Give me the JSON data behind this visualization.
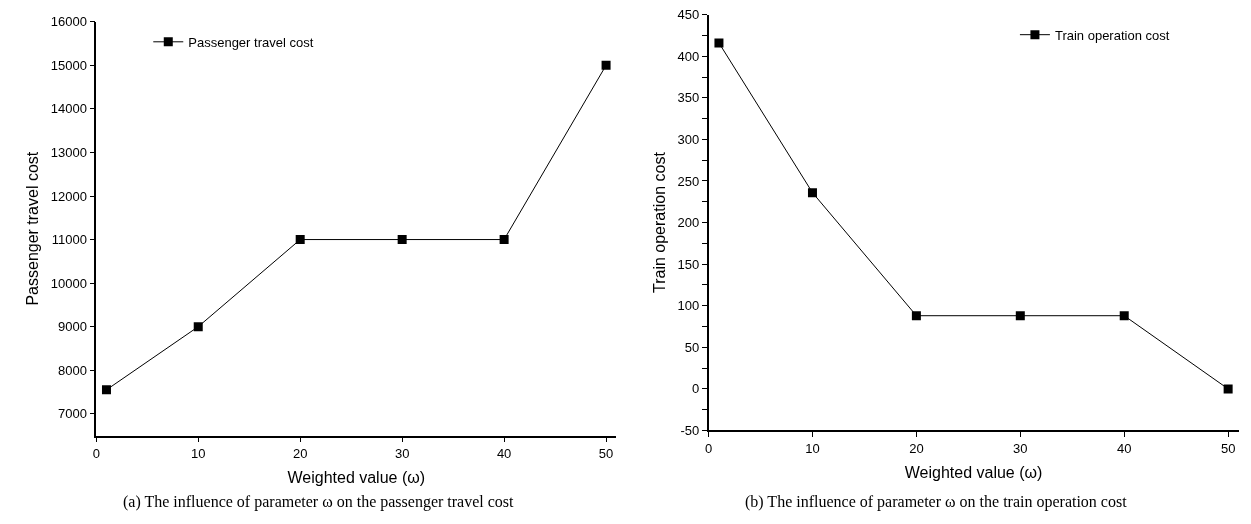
{
  "chart_data": [
    {
      "type": "line",
      "x": [
        1,
        10,
        20,
        30,
        40,
        50
      ],
      "xlabel": "Weighted value (ω)",
      "ylabel": "Passenger travel cost",
      "xlim": [
        0,
        51
      ],
      "xticks": [
        0,
        10,
        20,
        30,
        40,
        50
      ],
      "ylim": [
        6500,
        16000
      ],
      "yticks": [
        7000,
        8000,
        9000,
        10000,
        11000,
        12000,
        13000,
        14000,
        15000,
        16000
      ],
      "series": [
        {
          "name": "Passenger travel cost",
          "color": "#000000",
          "values": [
            7550,
            9000,
            11000,
            11000,
            11000,
            15000
          ]
        }
      ],
      "marker": "square",
      "line_style": "solid",
      "legend": "top left",
      "annotations": [
        "(a) The influence of parameter ω on the passenger travel cost"
      ]
    },
    {
      "type": "line",
      "x": [
        1,
        10,
        20,
        30,
        40,
        50
      ],
      "xlabel": "Weighted value (ω)",
      "ylabel": "Train operation cost",
      "xlim": [
        0,
        51
      ],
      "xticks": [
        0,
        10,
        20,
        30,
        40,
        50
      ],
      "ylim": [
        -50,
        450
      ],
      "yticks": [
        -50,
        {
          "value": -25,
          "label": null
        },
        0,
        {
          "value": 25,
          "label": null
        },
        50,
        {
          "value": 75,
          "label": null
        },
        100,
        {
          "value": 125,
          "label": null
        },
        150,
        {
          "value": 175,
          "label": null
        },
        200,
        {
          "value": 225,
          "label": null
        },
        250,
        {
          "value": 275,
          "label": null
        },
        300,
        {
          "value": 325,
          "label": null
        },
        350,
        {
          "value": 375,
          "label": null
        },
        400,
        {
          "value": 425,
          "label": null
        },
        450
      ],
      "series": [
        {
          "name": "Train operation cost",
          "color": "#000000",
          "values": [
            416,
            236,
            88,
            88,
            88,
            0
          ]
        }
      ],
      "marker": "square",
      "line_style": "solid",
      "legend": "top right",
      "annotations": [
        "(b) The influence of parameter ω on the train operation cost"
      ]
    }
  ]
}
